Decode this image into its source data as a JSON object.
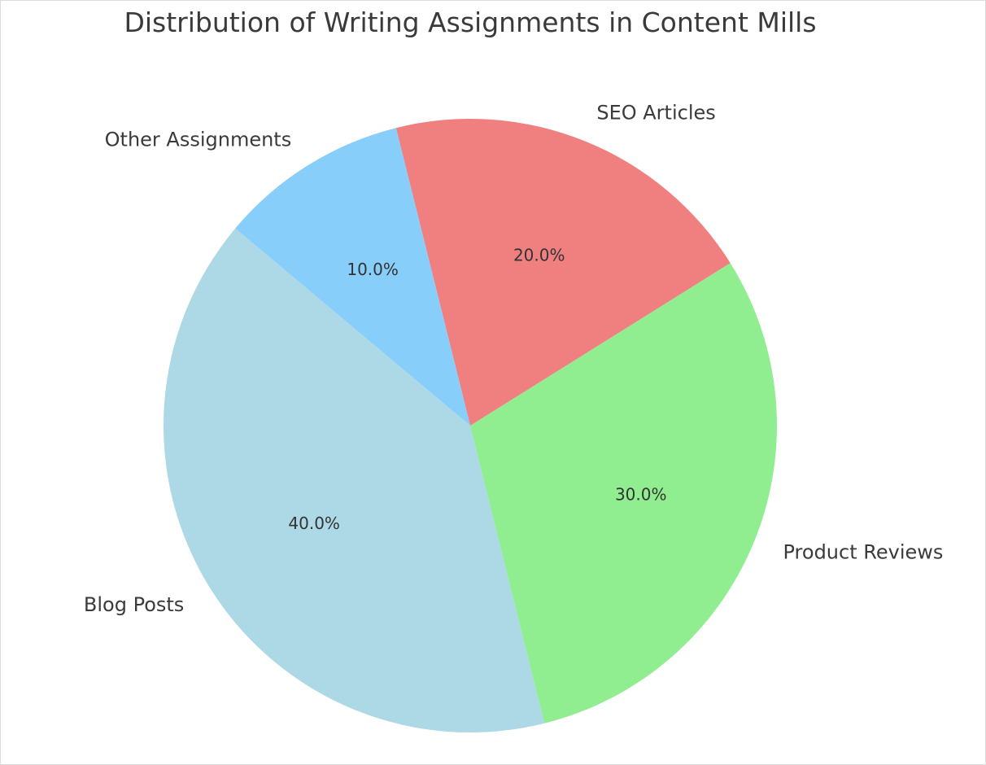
{
  "chart_data": {
    "type": "pie",
    "title": "Distribution of Writing Assignments in Content Mills",
    "categories": [
      "Blog Posts",
      "Product Reviews",
      "SEO Articles",
      "Other Assignments"
    ],
    "values": [
      40,
      30,
      20,
      10
    ],
    "value_labels": [
      "40.0%",
      "30.0%",
      "20.0%",
      "10.0%"
    ],
    "colors": [
      "#add8e6",
      "#90ee90",
      "#f08080",
      "#87cefa"
    ],
    "start_angle_deg": 140,
    "direction": "counterclockwise",
    "legend": "none"
  }
}
